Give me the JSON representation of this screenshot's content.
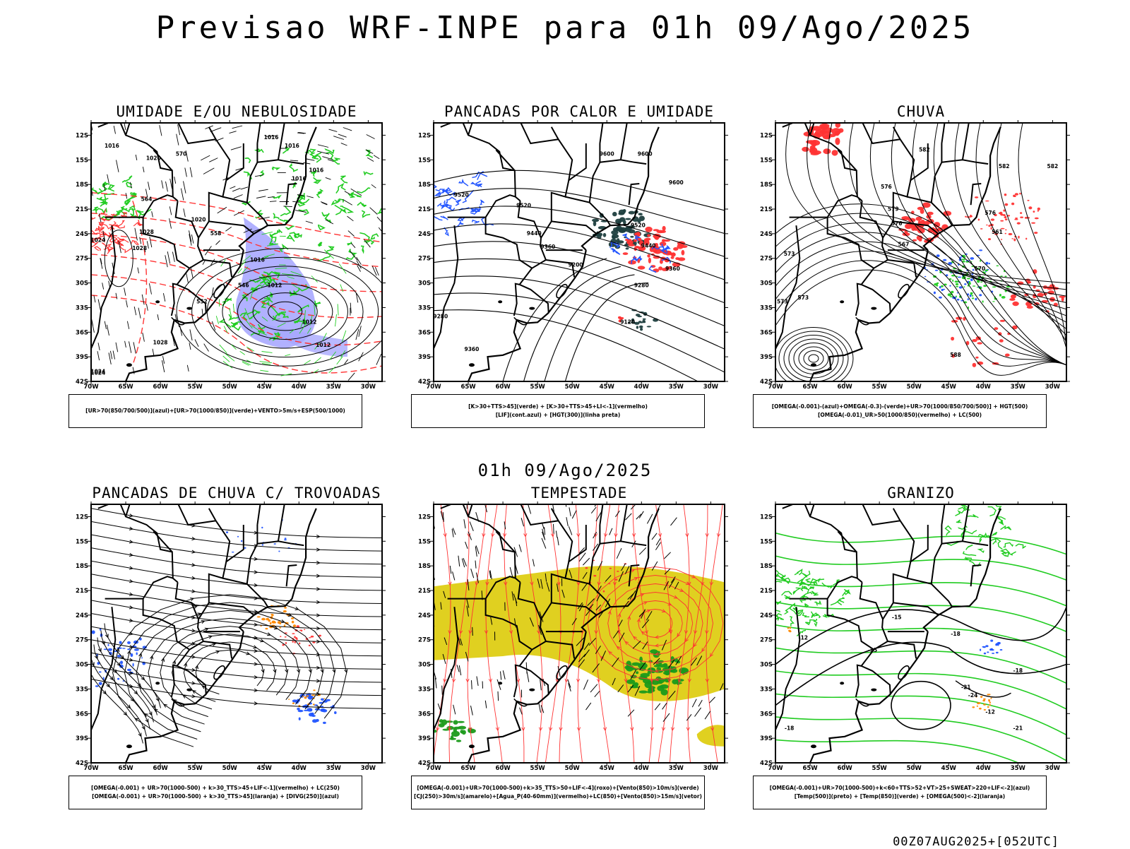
{
  "title": "Previsao WRF-INPE  para 01h 09/Ago/2025",
  "mid_title": "01h 09/Ago/2025",
  "footer": "00Z07AUG2025+[052UTC]",
  "lat_labels": [
    "12S",
    "15S",
    "18S",
    "21S",
    "24S",
    "27S",
    "30S",
    "33S",
    "36S",
    "39S",
    "42S"
  ],
  "lon_labels": [
    "70W",
    "65W",
    "60W",
    "55W",
    "50W",
    "45W",
    "40W",
    "35W",
    "30W"
  ],
  "panels": [
    {
      "title": "UMIDADE E/OU NEBULOSIDADE",
      "legend": [
        "[UR>70(850/700/500)](azul)+[UR>70(1000/850)](verde)+VENTO>5m/s+ESP(500/1000)"
      ],
      "contour_labels": [
        "1016",
        "1020",
        "1016",
        "1016",
        "1016",
        "1016",
        "1020",
        "1028",
        "1024",
        "1028",
        "1024",
        "1016",
        "1012",
        "1012",
        "1028",
        "1024",
        "1012",
        "570",
        "564",
        "558",
        "552",
        "546"
      ]
    },
    {
      "title": "PANCADAS POR CALOR E UMIDADE",
      "legend": [
        "[K>30+TTS>45](verde) + [K>30+TTS>45+LI<-1](vermelho)",
        "[LIF](cont.azul) + [HGT(300)](linha preta)"
      ],
      "contour_labels": [
        "9600",
        "9600",
        "9600",
        "9520",
        "9520",
        "9520",
        "9440",
        "9440",
        "9360",
        "9360",
        "9280",
        "9200",
        "9120",
        "9360",
        "9280"
      ]
    },
    {
      "title": "CHUVA",
      "legend": [
        "[OMEGA(-0.001)-(azul)+OMEGA(-0.3)-(verde)+UR>70(1000/850/700/500)] + HGT(500)",
        "[OMEGA(-0.01)_UR>50(1000/850)(vermelho) + LC(500)"
      ],
      "contour_labels": [
        "582",
        "582",
        "582",
        "576",
        "579",
        "576",
        "573",
        "570",
        "567",
        "561",
        "573",
        "576",
        "573",
        "588"
      ]
    },
    {
      "title": "PANCADAS DE CHUVA C/ TROVOADAS",
      "legend": [
        "[OMEGA(-0.001) + UR>70(1000-500) + k>30_TTS>45+LIF<-1](vermelho) + LC(250)",
        "[OMEGA(-0.001) + UR>70(1000-500) + k>30_TTS>45](laranja) + [DIVG(250)](azul)"
      ],
      "contour_labels": []
    },
    {
      "title": "TEMPESTADE",
      "legend": [
        "[OMEGA(-0.001)+UR>70(1000-500)+k>35_TTS>50+LIF<-4](roxo)+[Vento(850)>10m/s](verde)",
        "[CJ(250)>30m/s](amarelo)+[Agua_P(40-60mm)](vermelho)+LC(850)+[Vento(850)>15m/s](vetor)"
      ],
      "contour_labels": []
    },
    {
      "title": "GRANIZO",
      "legend": [
        "[OMEGA(-0.001)+UR>70(1000-500)+k<60+TTS>52+VT>25+SWEAT>220+LIF<-2](azul)",
        "[Temp(500)](preto) + [Temp(850)](verde) + [OMEGA(500)<-2](laranja)"
      ],
      "contour_labels": [
        "-15",
        "-18",
        "-12",
        "-21",
        "-24",
        "-15",
        "-18",
        "-12",
        "-18",
        "-21"
      ]
    }
  ],
  "colors": {
    "blue": "#2255ff",
    "green": "#22cc22",
    "red": "#ff3333",
    "orange": "#ff8800",
    "yellow": "#e0d020",
    "teal": "#1f3f3f",
    "lavender": "#a8a8ff"
  }
}
